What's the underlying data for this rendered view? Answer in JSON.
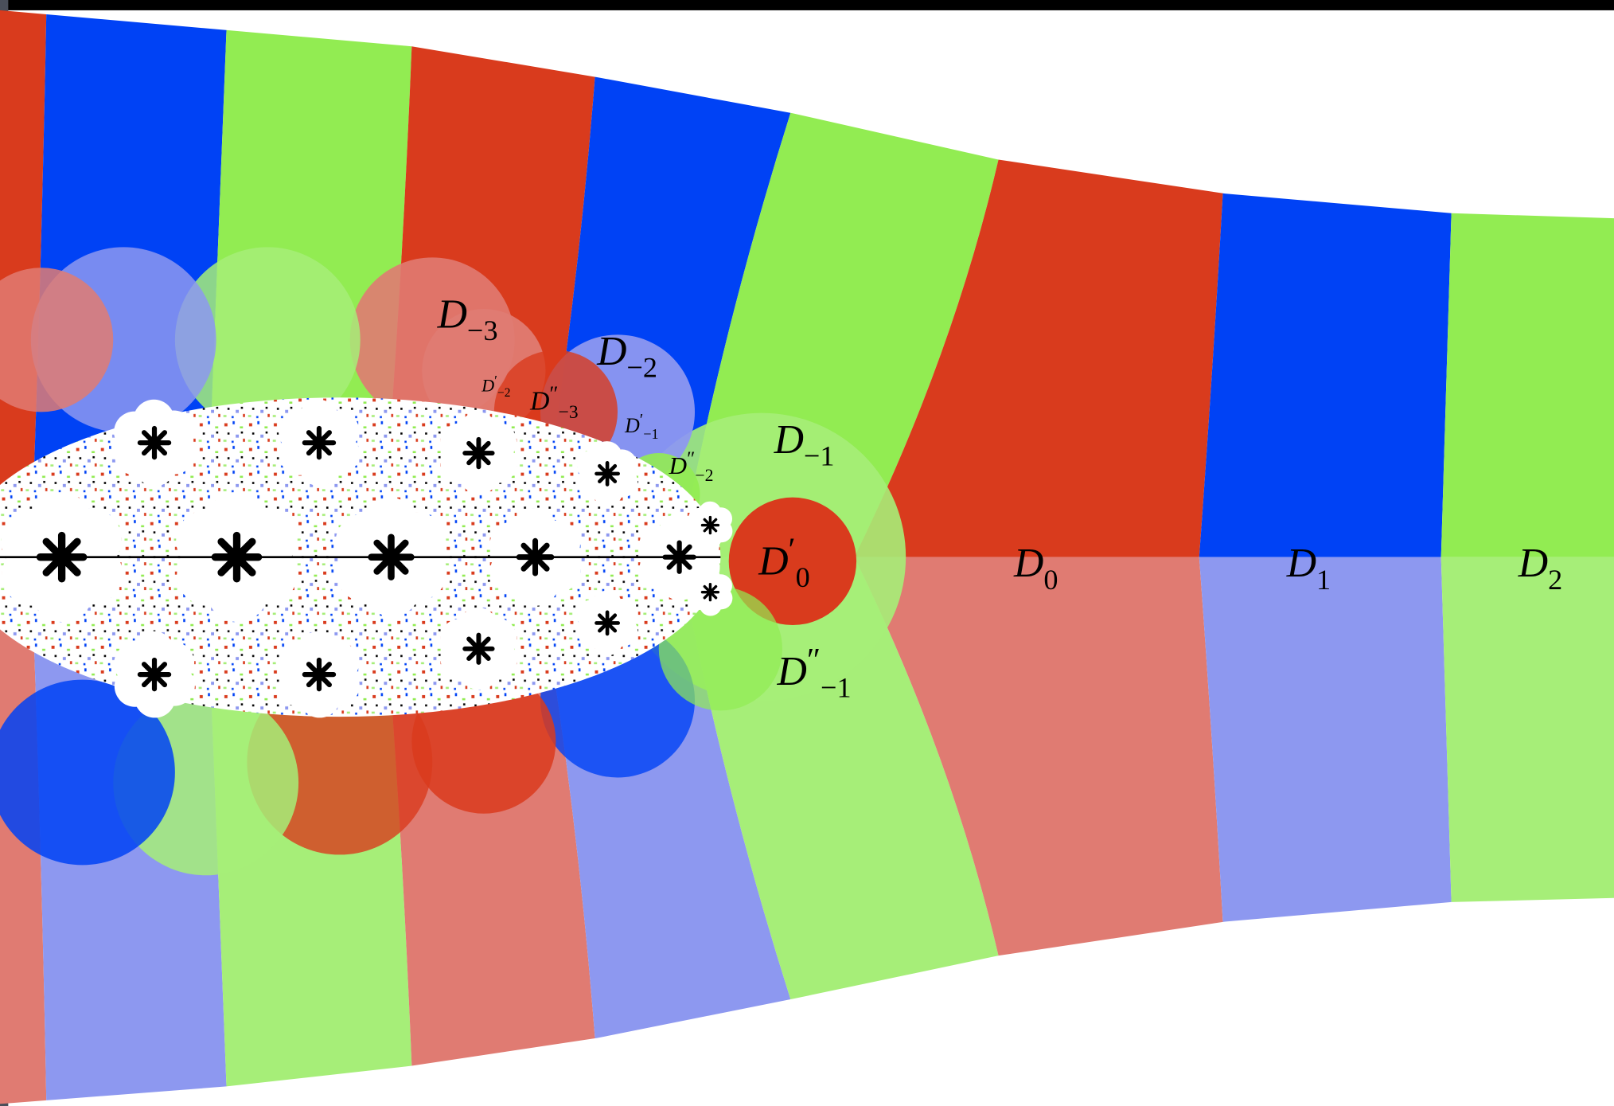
{
  "labels": [
    {
      "base": "D",
      "sub": "−3"
    },
    {
      "base": "D",
      "sub": "−2"
    },
    {
      "base": "D",
      "prime": "′",
      "sub": "−2"
    },
    {
      "base": "D",
      "prime": "″",
      "sub": "−3"
    },
    {
      "base": "D",
      "prime": "′",
      "sub": "−1"
    },
    {
      "base": "D",
      "prime": "″",
      "sub": "−2"
    },
    {
      "base": "D",
      "sub": "−1"
    },
    {
      "base": "D",
      "prime": "′",
      "sub": "0"
    },
    {
      "base": "D",
      "sub": "0"
    },
    {
      "base": "D",
      "sub": "1"
    },
    {
      "base": "D",
      "sub": "2"
    },
    {
      "base": "D",
      "prime": "″",
      "sub": "−1"
    }
  ]
}
